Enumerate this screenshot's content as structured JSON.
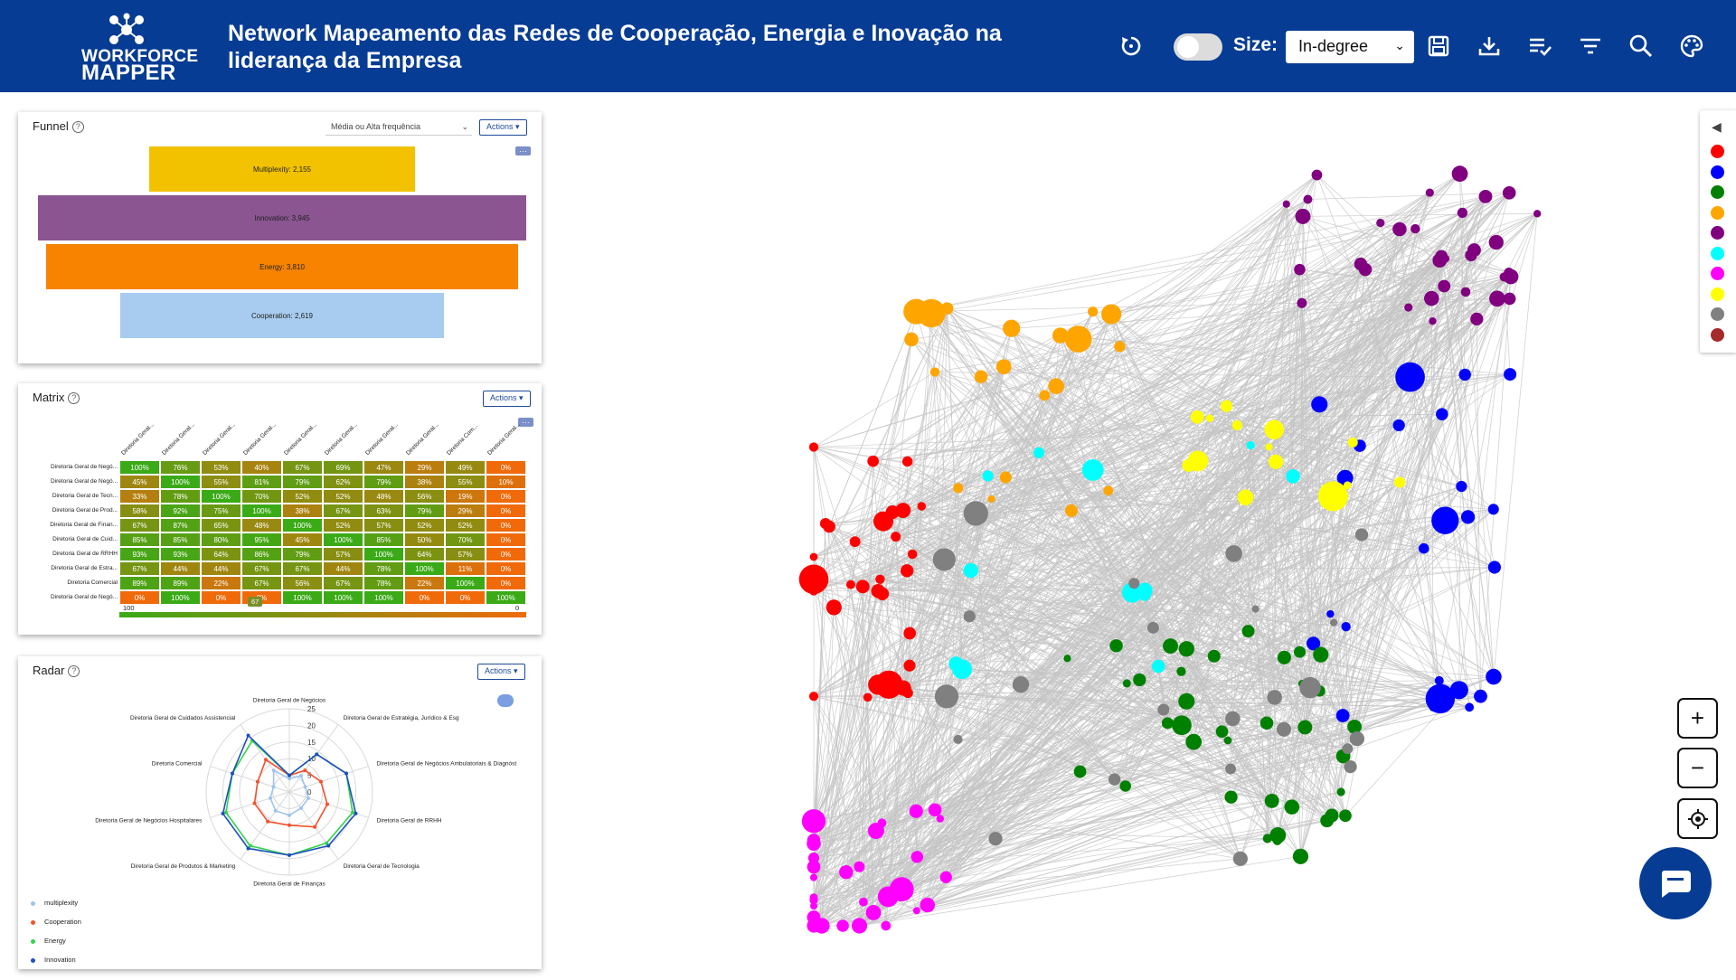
{
  "header": {
    "logo_line1": "WORKFORCE",
    "logo_line2": "MAPPER",
    "title_line1": "Network Mapeamento das Redes de Cooperação, Energia e Inovação na",
    "title_line2": "liderança da Empresa",
    "size_label": "Size:",
    "size_value": "In-degree",
    "icons": [
      "reset-icon",
      "toggle",
      "save-icon",
      "download-icon",
      "checklist-icon",
      "filter-icon",
      "search-icon",
      "palette-icon"
    ]
  },
  "funnel": {
    "title": "Funnel",
    "select_value": "Média ou Alta frequência",
    "actions_label": "Actions",
    "bars": [
      {
        "label": "Multiplexity: 2,155",
        "value": 2155,
        "color": "#f2c200"
      },
      {
        "label": "Innovation: 3,945",
        "value": 3945,
        "color": "#8a5590"
      },
      {
        "label": "Energy: 3,810",
        "value": 3810,
        "color": "#f78300"
      },
      {
        "label": "Cooperation: 2,619",
        "value": 2619,
        "color": "#a7ccf0"
      }
    ]
  },
  "matrix": {
    "title": "Matrix",
    "actions_label": "Actions",
    "col_labels": [
      "Diretoria Geral...",
      "Diretoria Geral...",
      "Diretoria Geral...",
      "Diretoria Geral...",
      "Diretoria Geral...",
      "Diretoria Geral...",
      "Diretoria Geral...",
      "Diretoria Geral...",
      "Diretoria Com...",
      "Diretoria Geral..."
    ],
    "row_labels": [
      "Diretoria Geral de Negó...",
      "Diretoria Geral de Negó...",
      "Diretoria Geral de Tecn...",
      "Diretoria Geral de Prod...",
      "Diretoria Geral de Finan...",
      "Diretoria Geral de Cuid...",
      "Diretoria Geral de RRHH",
      "Diretoria Geral de Estra...",
      "Diretoria Comercial",
      "Diretoria Geral de Negó..."
    ],
    "rows": [
      [
        100,
        76,
        53,
        40,
        67,
        69,
        47,
        29,
        49,
        0
      ],
      [
        45,
        100,
        55,
        81,
        79,
        62,
        79,
        38,
        55,
        10
      ],
      [
        33,
        78,
        100,
        70,
        52,
        52,
        48,
        56,
        19,
        0
      ],
      [
        58,
        92,
        75,
        100,
        38,
        67,
        63,
        79,
        29,
        0
      ],
      [
        67,
        87,
        65,
        48,
        100,
        52,
        57,
        52,
        52,
        0
      ],
      [
        85,
        85,
        80,
        95,
        45,
        100,
        85,
        50,
        70,
        0
      ],
      [
        93,
        93,
        64,
        86,
        79,
        57,
        100,
        64,
        57,
        0
      ],
      [
        67,
        44,
        44,
        67,
        67,
        44,
        78,
        100,
        11,
        0
      ],
      [
        89,
        89,
        22,
        67,
        56,
        67,
        78,
        22,
        100,
        0
      ],
      [
        0,
        100,
        0,
        0,
        100,
        100,
        100,
        0,
        0,
        100
      ]
    ],
    "scale_max": "100",
    "scale_min": "0",
    "scale_marker": "67"
  },
  "radar": {
    "title": "Radar",
    "actions_label": "Actions",
    "axes": [
      "Diretoria Geral de Negócios",
      "Diretoria Geral de Estratégia, Jurídico & Esg",
      "Diretoria Geral de Negócios Ambulatoriais & Diagnóst",
      "Diretoria Geral de RRHH",
      "Diretoria Geral de Tecnologia",
      "Diretoria Geral de Finanças",
      "Diretoria Geral de Produtos & Marketing",
      "Diretoria Geral de Negócios Hospitalares",
      "Diretoria  Comercial",
      "Diretoria Geral de Cuidados Assistencial"
    ],
    "ticks": [
      "25",
      "20",
      "15",
      "10",
      "5",
      "0"
    ],
    "series": [
      {
        "name": "multiplexity",
        "color": "#9fc4ee",
        "values": [
          4,
          6,
          5,
          6,
          6,
          7,
          7,
          6,
          5,
          8
        ]
      },
      {
        "name": "Cooperation",
        "color": "#f2512b",
        "values": [
          5,
          8,
          10,
          12,
          13,
          10,
          11,
          11,
          10,
          12
        ]
      },
      {
        "name": "Energy",
        "color": "#33d44b",
        "values": [
          5,
          14,
          18,
          20,
          19,
          19,
          20,
          20,
          18,
          19
        ]
      },
      {
        "name": "Innovation",
        "color": "#1f4fbf",
        "values": [
          5,
          14,
          18,
          21,
          20,
          19,
          21,
          21,
          18,
          21
        ]
      }
    ]
  },
  "network_legend": {
    "colors": [
      "#ff0000",
      "#0000ff",
      "#008000",
      "#ffa500",
      "#800080",
      "#00ffff",
      "#ff00ff",
      "#ffff00",
      "#808080",
      "#a52a2a"
    ]
  },
  "zoom": {
    "in": "+",
    "out": "−"
  }
}
